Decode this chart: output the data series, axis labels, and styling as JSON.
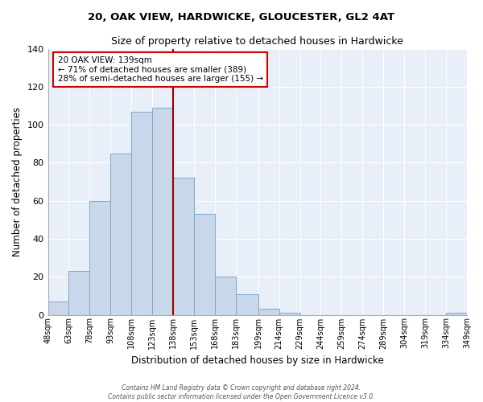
{
  "title": "20, OAK VIEW, HARDWICKE, GLOUCESTER, GL2 4AT",
  "subtitle": "Size of property relative to detached houses in Hardwicke",
  "xlabel": "Distribution of detached houses by size in Hardwicke",
  "ylabel": "Number of detached properties",
  "bar_color": "#c8d8ea",
  "bar_edge_color": "#7aaac8",
  "background_color": "#e8eff8",
  "grid_color": "#ffffff",
  "ref_line_x": 138,
  "ref_line_color": "#990000",
  "annotation_text_line1": "20 OAK VIEW: 139sqm",
  "annotation_text_line2": "← 71% of detached houses are smaller (389)",
  "annotation_text_line3": "28% of semi-detached houses are larger (155) →",
  "annotation_box_edgecolor": "#cc0000",
  "bin_edges": [
    48,
    63,
    78,
    93,
    108,
    123,
    138,
    153,
    168,
    183,
    199,
    214,
    229,
    244,
    259,
    274,
    289,
    304,
    319,
    334,
    349
  ],
  "bin_labels": [
    "48sqm",
    "63sqm",
    "78sqm",
    "93sqm",
    "108sqm",
    "123sqm",
    "138sqm",
    "153sqm",
    "168sqm",
    "183sqm",
    "199sqm",
    "214sqm",
    "229sqm",
    "244sqm",
    "259sqm",
    "274sqm",
    "289sqm",
    "304sqm",
    "319sqm",
    "334sqm",
    "349sqm"
  ],
  "counts": [
    7,
    23,
    60,
    85,
    107,
    109,
    72,
    53,
    20,
    11,
    3,
    1,
    0,
    0,
    0,
    0,
    0,
    0,
    0,
    1
  ],
  "ylim": [
    0,
    140
  ],
  "yticks": [
    0,
    20,
    40,
    60,
    80,
    100,
    120,
    140
  ],
  "footer_line1": "Contains HM Land Registry data © Crown copyright and database right 2024.",
  "footer_line2": "Contains public sector information licensed under the Open Government Licence v3.0."
}
